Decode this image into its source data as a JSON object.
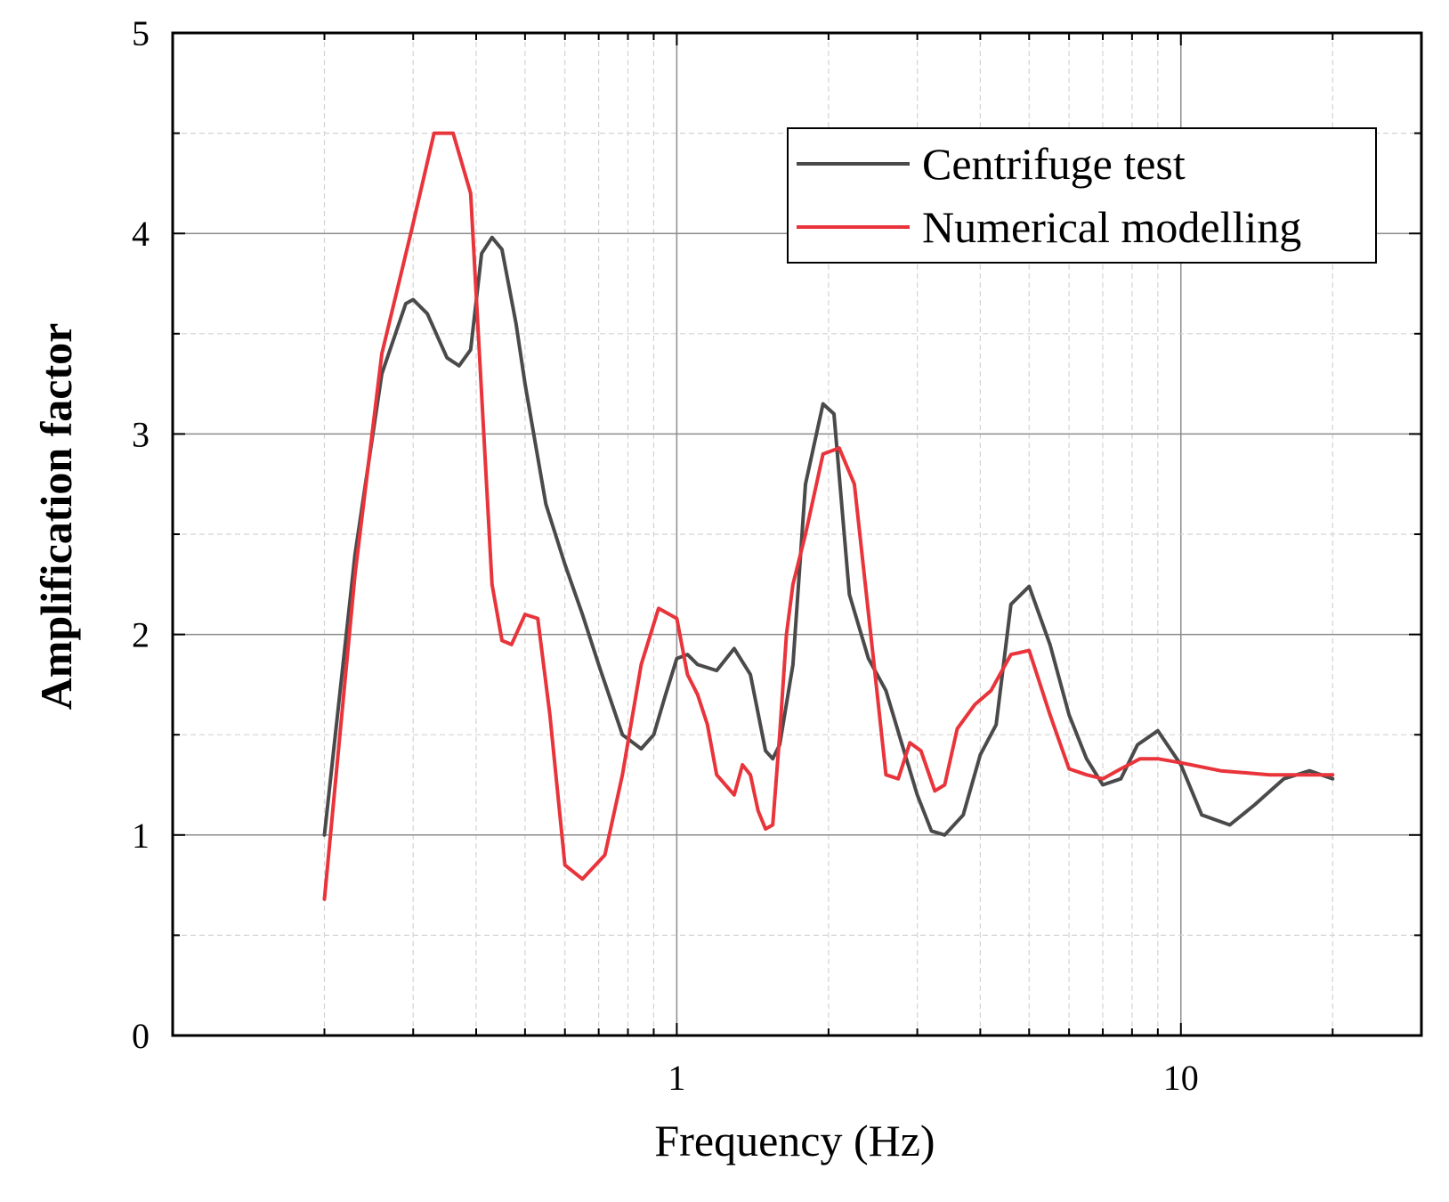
{
  "chart_data": {
    "type": "line",
    "title": "",
    "xlabel": "Frequency (Hz)",
    "ylabel": "Amplification factor",
    "xscale": "log",
    "xlim": [
      0.1,
      30
    ],
    "ylim": [
      0,
      5
    ],
    "xticks": [
      {
        "value": 1,
        "label": "1"
      },
      {
        "value": 10,
        "label": "10"
      }
    ],
    "yticks": [
      {
        "value": 0,
        "label": "0"
      },
      {
        "value": 1,
        "label": "1"
      },
      {
        "value": 2,
        "label": "2"
      },
      {
        "value": 3,
        "label": "3"
      },
      {
        "value": 4,
        "label": "4"
      },
      {
        "value": 5,
        "label": "5"
      }
    ],
    "grid": true,
    "legend_position": "top-right",
    "series": [
      {
        "name": "Centrifuge test",
        "color": "#4a4a4a",
        "x": [
          0.2,
          0.23,
          0.26,
          0.29,
          0.3,
          0.32,
          0.35,
          0.37,
          0.39,
          0.41,
          0.43,
          0.45,
          0.48,
          0.5,
          0.55,
          0.6,
          0.65,
          0.7,
          0.78,
          0.85,
          0.9,
          0.95,
          1.0,
          1.05,
          1.1,
          1.2,
          1.3,
          1.4,
          1.5,
          1.55,
          1.6,
          1.7,
          1.8,
          1.95,
          2.05,
          2.2,
          2.4,
          2.6,
          2.8,
          3.0,
          3.2,
          3.4,
          3.7,
          4.0,
          4.3,
          4.6,
          5.0,
          5.5,
          6.0,
          6.5,
          7.0,
          7.6,
          8.2,
          9.0,
          10.0,
          11.0,
          12.5,
          14.0,
          16.0,
          18.0,
          20.0
        ],
        "y": [
          1.0,
          2.4,
          3.3,
          3.65,
          3.67,
          3.6,
          3.38,
          3.34,
          3.42,
          3.9,
          3.98,
          3.92,
          3.55,
          3.25,
          2.65,
          2.35,
          2.1,
          1.85,
          1.5,
          1.43,
          1.5,
          1.7,
          1.88,
          1.9,
          1.85,
          1.82,
          1.93,
          1.8,
          1.42,
          1.38,
          1.45,
          1.85,
          2.75,
          3.15,
          3.1,
          2.2,
          1.88,
          1.72,
          1.45,
          1.2,
          1.02,
          1.0,
          1.1,
          1.4,
          1.55,
          2.15,
          2.24,
          1.95,
          1.6,
          1.38,
          1.25,
          1.28,
          1.45,
          1.52,
          1.35,
          1.1,
          1.05,
          1.15,
          1.28,
          1.32,
          1.28
        ]
      },
      {
        "name": "Numerical modelling",
        "color": "#e8343a",
        "x": [
          0.2,
          0.23,
          0.26,
          0.3,
          0.33,
          0.36,
          0.39,
          0.41,
          0.43,
          0.45,
          0.47,
          0.5,
          0.53,
          0.56,
          0.6,
          0.65,
          0.72,
          0.78,
          0.85,
          0.92,
          1.0,
          1.05,
          1.1,
          1.15,
          1.2,
          1.3,
          1.35,
          1.4,
          1.45,
          1.5,
          1.55,
          1.6,
          1.65,
          1.7,
          1.8,
          1.95,
          2.1,
          2.25,
          2.45,
          2.6,
          2.75,
          2.9,
          3.05,
          3.25,
          3.4,
          3.6,
          3.9,
          4.2,
          4.6,
          5.0,
          5.5,
          6.0,
          6.5,
          7.0,
          7.6,
          8.3,
          9.0,
          10.0,
          12.0,
          15.0,
          20.0
        ],
        "y": [
          0.68,
          2.3,
          3.4,
          4.05,
          4.5,
          4.5,
          4.2,
          3.2,
          2.25,
          1.97,
          1.95,
          2.1,
          2.08,
          1.6,
          0.85,
          0.78,
          0.9,
          1.3,
          1.85,
          2.13,
          2.08,
          1.8,
          1.7,
          1.55,
          1.3,
          1.2,
          1.35,
          1.3,
          1.12,
          1.03,
          1.05,
          1.5,
          2.0,
          2.25,
          2.5,
          2.9,
          2.93,
          2.75,
          1.9,
          1.3,
          1.28,
          1.46,
          1.42,
          1.22,
          1.25,
          1.53,
          1.65,
          1.72,
          1.9,
          1.92,
          1.6,
          1.33,
          1.3,
          1.28,
          1.33,
          1.38,
          1.38,
          1.36,
          1.32,
          1.3,
          1.3
        ]
      }
    ]
  }
}
